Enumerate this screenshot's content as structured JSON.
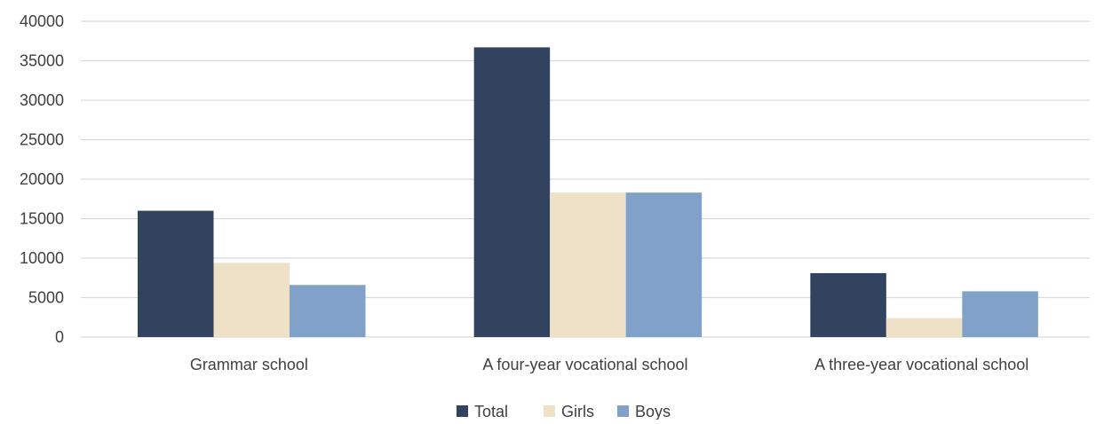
{
  "chart_data": {
    "type": "bar",
    "title": "",
    "xlabel": "",
    "ylabel": "",
    "categories": [
      "Grammar school",
      "A four-year vocational school",
      "A three-year vocational school"
    ],
    "series": [
      {
        "name": "Total",
        "color": "#31435e",
        "values": [
          16000,
          36700,
          8100
        ]
      },
      {
        "name": "Girls",
        "color": "#efe1c7",
        "values": [
          9400,
          18300,
          2400
        ]
      },
      {
        "name": "Boys",
        "color": "#80a2c8",
        "values": [
          6600,
          18300,
          5800
        ]
      }
    ],
    "ylim": [
      0,
      40000
    ],
    "yticks": [
      0,
      5000,
      10000,
      15000,
      20000,
      25000,
      30000,
      35000,
      40000
    ],
    "grid": true,
    "legend_position": "bottom-center",
    "colors": {
      "gridline": "#d9d9d9",
      "axis_text": "#404040"
    }
  }
}
